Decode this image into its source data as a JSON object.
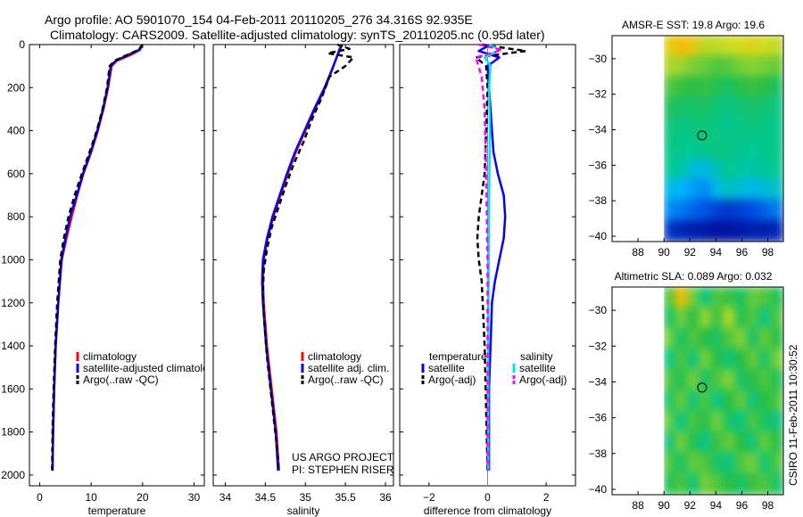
{
  "header": {
    "title_line1": "Argo profile: AO 5901070_154 04-Feb-2011 20110205_276 34.316S 92.935E",
    "title_line2": "Climatology: CARS2009. Satellite-adjusted climatology: synTS_20110205.nc (0.95d later)"
  },
  "colors": {
    "red": "#ff0000",
    "blue": "#0000ff",
    "black": "#000000",
    "cyan": "#00e5ee",
    "magenta": "#ff00ff"
  },
  "side_text": "CSIRO 11-Feb-2011 10:30:52",
  "project_credit": {
    "line1": "US ARGO PROJECT",
    "line2": "PI: STEPHEN RISER"
  },
  "chart_data": [
    {
      "type": "line",
      "id": "temperature",
      "xlabel": "temperature",
      "ylabel": "",
      "xlim": [
        -2,
        32
      ],
      "ylim": [
        2050,
        0
      ],
      "xticks": [
        0,
        10,
        20,
        30
      ],
      "yticks": [
        0,
        200,
        400,
        600,
        800,
        1000,
        1200,
        1400,
        1600,
        1800,
        2000
      ],
      "legend_position": "lower-left",
      "series": [
        {
          "name": "climatology",
          "color": "#ff0000",
          "style": "solid",
          "x": [
            19.9,
            19.5,
            17.5,
            15.0,
            14.0,
            13.3,
            12.4,
            11.3,
            10.0,
            8.5,
            7.3,
            6.2,
            5.2,
            4.3,
            3.6,
            3.1,
            2.8,
            2.6,
            2.5
          ],
          "y": [
            0,
            25,
            50,
            75,
            100,
            200,
            300,
            400,
            500,
            600,
            700,
            800,
            900,
            1000,
            1200,
            1400,
            1600,
            1800,
            1980
          ]
        },
        {
          "name": "satellite-adjusted climatology",
          "color": "#0000ff",
          "style": "solid",
          "x": [
            20.0,
            19.3,
            17.0,
            14.8,
            13.8,
            13.2,
            12.3,
            11.2,
            9.9,
            8.4,
            7.2,
            5.9,
            5.0,
            4.2,
            3.6,
            3.1,
            2.8,
            2.6,
            2.5
          ],
          "y": [
            0,
            25,
            50,
            75,
            100,
            200,
            300,
            400,
            500,
            600,
            700,
            800,
            900,
            1000,
            1200,
            1400,
            1600,
            1800,
            1980
          ]
        },
        {
          "name": "Argo(..raw -QC)",
          "color": "#000000",
          "style": "dashed",
          "x": [
            20.0,
            19.2,
            16.8,
            14.6,
            13.6,
            13.1,
            12.2,
            11.1,
            9.7,
            8.2,
            6.8,
            5.6,
            4.7,
            4.0,
            3.4,
            3.0,
            2.7,
            2.5,
            2.4
          ],
          "y": [
            0,
            25,
            50,
            75,
            100,
            200,
            300,
            400,
            500,
            600,
            700,
            800,
            900,
            1000,
            1200,
            1400,
            1600,
            1800,
            1980
          ]
        }
      ]
    },
    {
      "type": "line",
      "id": "salinity",
      "xlabel": "salinity",
      "ylabel": "",
      "xlim": [
        33.85,
        36.1
      ],
      "ylim": [
        2050,
        0
      ],
      "xticks": [
        34,
        34.5,
        35,
        35.5,
        36
      ],
      "yticks": [
        0,
        200,
        400,
        600,
        800,
        1000,
        1200,
        1400,
        1600,
        1800,
        2000
      ],
      "legend_position": "lower-right",
      "series": [
        {
          "name": "climatology",
          "color": "#ff0000",
          "style": "solid",
          "x": [
            35.45,
            35.42,
            35.4,
            35.35,
            35.25,
            35.12,
            35.0,
            34.88,
            34.78,
            34.69,
            34.6,
            34.53,
            34.48,
            34.47,
            34.48,
            34.52,
            34.58,
            34.64,
            34.67
          ],
          "y": [
            0,
            25,
            50,
            100,
            200,
            300,
            400,
            500,
            600,
            700,
            800,
            900,
            1000,
            1100,
            1200,
            1400,
            1600,
            1800,
            1980
          ]
        },
        {
          "name": "satellite adj. clim.",
          "color": "#0000ff",
          "style": "solid",
          "x": [
            35.46,
            35.43,
            35.4,
            35.35,
            35.24,
            35.11,
            34.99,
            34.87,
            34.77,
            34.68,
            34.59,
            34.52,
            34.47,
            34.46,
            34.47,
            34.51,
            34.57,
            34.63,
            34.66
          ],
          "y": [
            0,
            25,
            50,
            100,
            200,
            300,
            400,
            500,
            600,
            700,
            800,
            900,
            1000,
            1100,
            1200,
            1400,
            1600,
            1800,
            1980
          ]
        },
        {
          "name": "Argo(..raw -QC)",
          "color": "#000000",
          "style": "dashed",
          "x": [
            35.4,
            35.55,
            35.28,
            35.6,
            35.5,
            35.3,
            35.2,
            35.08,
            34.98,
            34.86,
            34.76,
            34.67,
            34.58,
            34.52,
            34.48,
            34.47,
            34.48,
            34.52,
            34.58,
            34.64,
            34.67
          ],
          "y": [
            0,
            20,
            40,
            60,
            100,
            150,
            250,
            350,
            450,
            550,
            650,
            750,
            850,
            950,
            1050,
            1150,
            1250,
            1450,
            1650,
            1850,
            1980
          ]
        }
      ]
    },
    {
      "type": "line",
      "id": "difference",
      "xlabel": "difference from climatology",
      "ylabel": "",
      "xlim": [
        -3,
        3
      ],
      "ylim": [
        2050,
        0
      ],
      "xticks": [
        -2,
        0,
        2
      ],
      "yticks": [
        0,
        200,
        400,
        600,
        800,
        1000,
        1200,
        1400,
        1600,
        1800,
        2000
      ],
      "legend_position": "lower",
      "legend_headers": [
        "temperature",
        "salinity"
      ],
      "series": [
        {
          "name": "satellite",
          "group": "temperature",
          "color": "#0000ff",
          "style": "solid",
          "x": [
            0.1,
            -0.3,
            0.4,
            0.0,
            0.05,
            0.1,
            0.15,
            0.2,
            0.35,
            0.45,
            0.55,
            0.6,
            0.55,
            0.4,
            0.25,
            0.15,
            0.1,
            0.05,
            0.05,
            0.05
          ],
          "y": [
            0,
            30,
            60,
            100,
            200,
            300,
            400,
            500,
            600,
            650,
            700,
            800,
            900,
            1000,
            1100,
            1200,
            1400,
            1600,
            1800,
            1980
          ]
        },
        {
          "name": "Argo(-adj)",
          "group": "temperature",
          "color": "#000000",
          "style": "dashed",
          "x": [
            -0.2,
            1.3,
            -0.4,
            -0.05,
            0.0,
            -0.05,
            -0.1,
            -0.2,
            -0.3,
            -0.35,
            -0.3,
            -0.2,
            -0.1,
            -0.05,
            0.0
          ],
          "y": [
            0,
            30,
            60,
            100,
            200,
            400,
            600,
            700,
            800,
            900,
            1000,
            1100,
            1400,
            1700,
            1980
          ]
        },
        {
          "name": "satellite",
          "group": "salinity",
          "color": "#00e5ee",
          "style": "solid",
          "x": [
            0.05,
            0.4,
            -0.1,
            0.1,
            0.05,
            0.08,
            0.06,
            0.05,
            0.04,
            0.03,
            0.02,
            0.02,
            0.02
          ],
          "y": [
            0,
            25,
            60,
            100,
            200,
            400,
            600,
            800,
            1000,
            1200,
            1500,
            1800,
            1980
          ]
        },
        {
          "name": "Argo(-adj)",
          "group": "salinity",
          "color": "#ff00ff",
          "style": "dashed",
          "x": [
            -0.3,
            0.5,
            -0.4,
            -0.2,
            -0.1,
            -0.05,
            0.0,
            0.0,
            0.0
          ],
          "y": [
            0,
            25,
            60,
            150,
            300,
            600,
            1000,
            1500,
            1980
          ]
        }
      ]
    },
    {
      "type": "heatmap",
      "id": "sst-map",
      "title": "AMSR-E SST: 19.8 Argo: 19.6",
      "xlim": [
        86,
        99.2
      ],
      "ylim": [
        -40.3,
        -28.7
      ],
      "xticks": [
        88,
        90,
        92,
        94,
        96,
        98
      ],
      "yticks": [
        -30,
        -32,
        -34,
        -36,
        -38,
        -40
      ],
      "data_xlim": [
        90,
        99.2
      ],
      "marker": {
        "lon": 92.935,
        "lat": -34.316
      },
      "colorscale": [
        "#00008b",
        "#0050e6",
        "#00b4ff",
        "#00c896",
        "#28be46",
        "#8cd232",
        "#d2dc1e",
        "#ffb400",
        "#ff7800"
      ],
      "grid": [
        [
          0.8,
          0.85,
          0.82,
          0.7,
          0.72,
          0.74,
          0.76,
          0.78,
          0.75,
          0.72
        ],
        [
          0.68,
          0.66,
          0.6,
          0.58,
          0.55,
          0.56,
          0.6,
          0.62,
          0.6,
          0.58
        ],
        [
          0.55,
          0.52,
          0.5,
          0.52,
          0.48,
          0.46,
          0.5,
          0.52,
          0.5,
          0.46
        ],
        [
          0.47,
          0.45,
          0.44,
          0.46,
          0.42,
          0.4,
          0.42,
          0.45,
          0.43,
          0.41
        ],
        [
          0.42,
          0.4,
          0.41,
          0.42,
          0.4,
          0.39,
          0.4,
          0.41,
          0.4,
          0.39
        ],
        [
          0.4,
          0.39,
          0.38,
          0.4,
          0.41,
          0.4,
          0.39,
          0.38,
          0.39,
          0.4
        ],
        [
          0.38,
          0.36,
          0.3,
          0.28,
          0.34,
          0.38,
          0.36,
          0.35,
          0.37,
          0.38
        ],
        [
          0.28,
          0.25,
          0.22,
          0.2,
          0.28,
          0.32,
          0.3,
          0.27,
          0.3,
          0.32
        ],
        [
          0.2,
          0.18,
          0.15,
          0.13,
          0.1,
          0.09,
          0.1,
          0.12,
          0.15,
          0.18
        ],
        [
          0.08,
          0.06,
          0.05,
          0.04,
          0.03,
          0.03,
          0.04,
          0.05,
          0.05,
          0.06
        ]
      ]
    },
    {
      "type": "heatmap",
      "id": "sla-map",
      "title": "Altimetric SLA: 0.089 Argo: 0.032",
      "xlim": [
        86,
        99.2
      ],
      "ylim": [
        -40.3,
        -28.7
      ],
      "xticks": [
        88,
        90,
        92,
        94,
        96,
        98
      ],
      "yticks": [
        -30,
        -32,
        -34,
        -36,
        -38,
        -40
      ],
      "data_xlim": [
        90,
        99.2
      ],
      "marker": {
        "lon": 92.935,
        "lat": -34.316
      },
      "colorscale": [
        "#00008b",
        "#0050e6",
        "#00b4ff",
        "#00c896",
        "#28be46",
        "#8cd232",
        "#d2dc1e",
        "#ffb400",
        "#ff7800"
      ],
      "grid": [
        [
          0.55,
          0.85,
          0.6,
          0.4,
          0.55,
          0.52,
          0.45,
          0.58,
          0.55,
          0.48
        ],
        [
          0.45,
          0.6,
          0.5,
          0.65,
          0.52,
          0.7,
          0.48,
          0.55,
          0.4,
          0.55
        ],
        [
          0.6,
          0.45,
          0.55,
          0.5,
          0.45,
          0.55,
          0.62,
          0.45,
          0.58,
          0.5
        ],
        [
          0.4,
          0.55,
          0.42,
          0.6,
          0.5,
          0.42,
          0.5,
          0.58,
          0.45,
          0.6
        ],
        [
          0.55,
          0.48,
          0.6,
          0.45,
          0.55,
          0.62,
          0.45,
          0.5,
          0.55,
          0.48
        ],
        [
          0.45,
          0.58,
          0.42,
          0.55,
          0.4,
          0.5,
          0.58,
          0.42,
          0.5,
          0.55
        ],
        [
          0.58,
          0.4,
          0.55,
          0.48,
          0.6,
          0.45,
          0.4,
          0.55,
          0.45,
          0.42
        ],
        [
          0.42,
          0.6,
          0.48,
          0.4,
          0.52,
          0.58,
          0.5,
          0.42,
          0.58,
          0.5
        ],
        [
          0.55,
          0.45,
          0.58,
          0.55,
          0.45,
          0.4,
          0.55,
          0.6,
          0.42,
          0.55
        ],
        [
          0.48,
          0.55,
          0.42,
          0.6,
          0.55,
          0.5,
          0.45,
          0.52,
          0.55,
          0.45
        ]
      ]
    }
  ]
}
